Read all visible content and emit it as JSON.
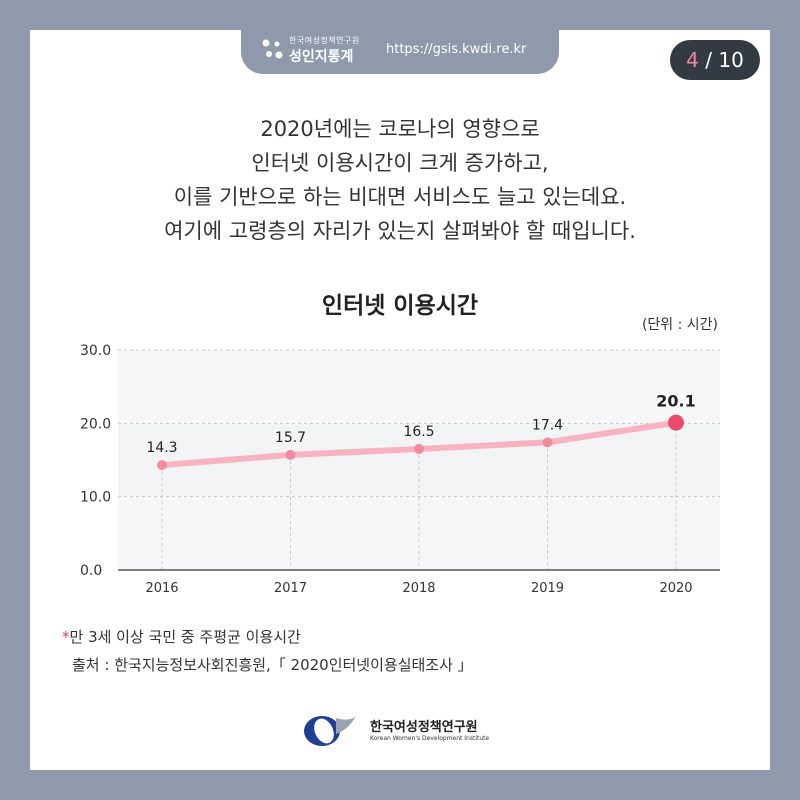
{
  "header": {
    "org_small": "한국여성정책연구원",
    "brand_name": "성인지통계",
    "url": "https://gsis.kwdi.re.kr"
  },
  "pagination": {
    "current": "4",
    "separator": " / ",
    "total": "10"
  },
  "intro_lines": [
    "2020년에는 코로나의 영향으로",
    "인터넷 이용시간이 크게 증가하고,",
    "이를 기반으로 하는 비대면 서비스도 늘고 있는데요.",
    "여기에 고령층의 자리가 있는지 살펴봐야 할 때입니다."
  ],
  "chart_data": {
    "type": "line",
    "title": "인터넷 이용시간",
    "unit_label": "(단위 : 시간)",
    "categories": [
      "2016",
      "2017",
      "2018",
      "2019",
      "2020"
    ],
    "values": [
      14.3,
      15.7,
      16.5,
      17.4,
      20.1
    ],
    "value_labels": [
      "14.3",
      "15.7",
      "16.5",
      "17.4",
      "20.1"
    ],
    "yticks": [
      "0.0",
      "10.0",
      "20.0",
      "30.0"
    ],
    "ylim": [
      0,
      30
    ],
    "grid": true,
    "line_color": "#f7b3c0",
    "highlight_color": "#e94b6a",
    "point_color": "#f08a9e"
  },
  "footnote": {
    "marker": "*",
    "text": "만 3세 이상 국민 중 주평균 이용시간",
    "source": "출처 : 한국지능정보사회진흥원,「 2020인터넷이용실태조사 」"
  },
  "logo": {
    "name_ko": "한국여성정책연구원",
    "name_en": "Korean Women's Development Institute"
  }
}
